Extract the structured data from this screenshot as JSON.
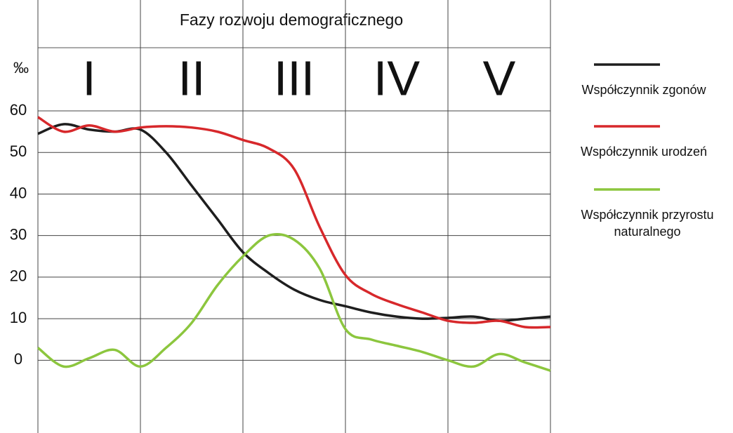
{
  "chart_data": {
    "type": "line",
    "title": "Fazy rozwoju demograficznego",
    "y_label": "‰",
    "categories": [
      "I",
      "II",
      "III",
      "IV",
      "V"
    ],
    "xlim": [
      0,
      5
    ],
    "x": [
      0,
      0.25,
      0.5,
      0.75,
      1,
      1.25,
      1.5,
      1.75,
      2,
      2.25,
      2.5,
      2.75,
      3,
      3.25,
      3.5,
      3.75,
      4,
      4.25,
      4.5,
      4.75,
      5
    ],
    "ylim": [
      -17.5,
      60
    ],
    "yticks": [
      0,
      10,
      20,
      30,
      40,
      50,
      60
    ],
    "grid": true,
    "legend": "right",
    "series": [
      {
        "name": "Współczynnik zgonów",
        "color": "#1e1e1e",
        "values": [
          54.5,
          56.8,
          55.5,
          55,
          55.5,
          50,
          42,
          34,
          26,
          21,
          17,
          14.5,
          13,
          11.5,
          10.5,
          10,
          10.2,
          10.5,
          9.5,
          10,
          10.5
        ]
      },
      {
        "name": "Współczynnik urodzeń",
        "color": "#d7282b",
        "values": [
          58.5,
          55,
          56.5,
          55,
          56,
          56.3,
          56,
          55,
          53,
          51,
          46,
          32,
          20.5,
          16,
          13.5,
          11.5,
          9.5,
          9,
          9.5,
          8,
          8
        ]
      },
      {
        "name": "Współczynnik przyrostu naturalnego",
        "color": "#8cc63e",
        "values": [
          3,
          -1.5,
          0.5,
          2.5,
          -1.5,
          3,
          9,
          18,
          25,
          30,
          29,
          22,
          7.5,
          5,
          3.5,
          2,
          0,
          -1.5,
          1.5,
          -0.5,
          -2.5
        ]
      }
    ]
  }
}
